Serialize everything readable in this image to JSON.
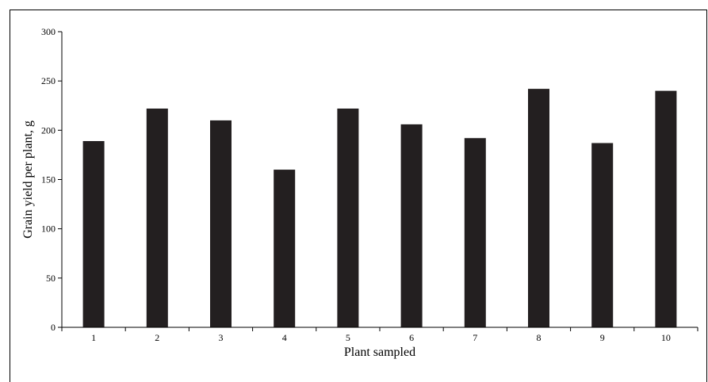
{
  "chart_data": {
    "type": "bar",
    "title": "",
    "xlabel": "Plant sampled",
    "ylabel": "Grain yield per plant, g",
    "categories": [
      "1",
      "2",
      "3",
      "4",
      "5",
      "6",
      "7",
      "8",
      "9",
      "10"
    ],
    "values": [
      189,
      222,
      210,
      160,
      222,
      206,
      192,
      242,
      187,
      240
    ],
    "ylim": [
      0,
      300
    ],
    "yticks": [
      0,
      50,
      100,
      150,
      200,
      250,
      300
    ],
    "grid": false,
    "legend": "none",
    "bar_color": "#231f20"
  }
}
